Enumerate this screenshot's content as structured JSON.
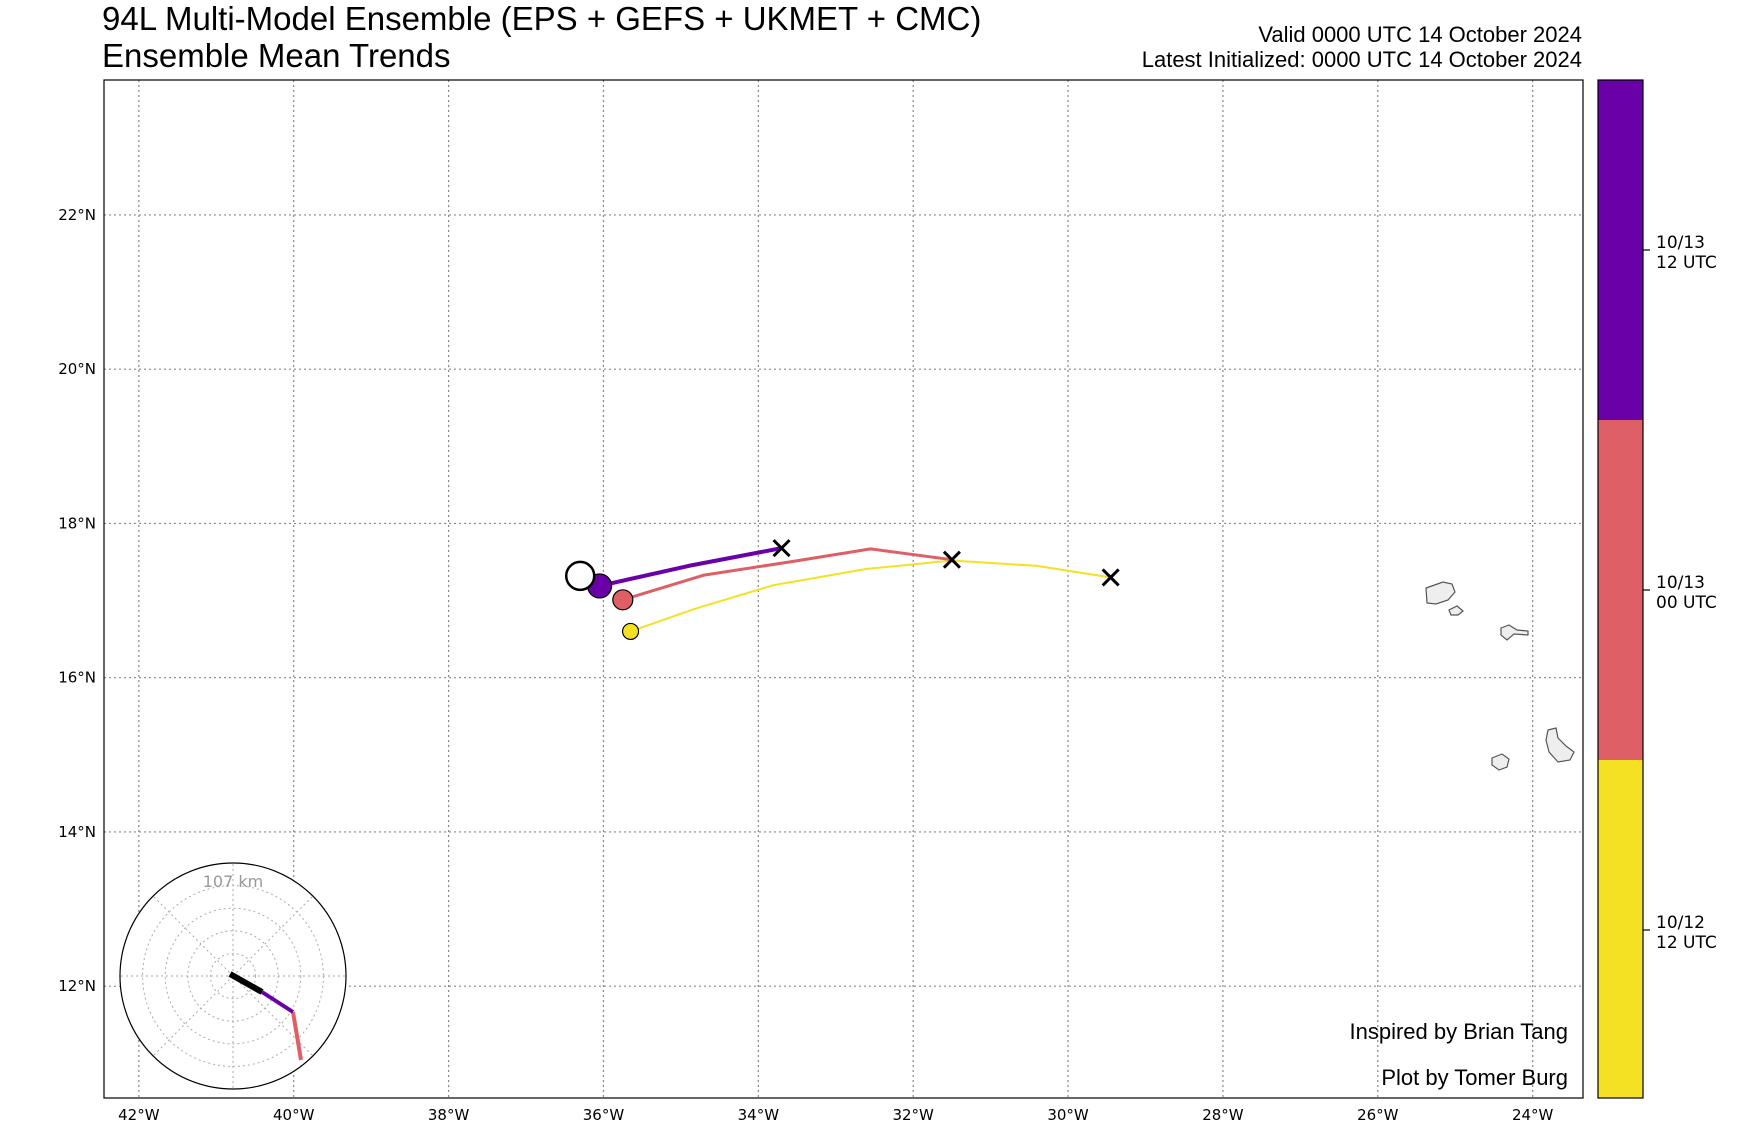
{
  "header": {
    "title": "94L Multi-Model Ensemble (EPS + GEFS + UKMET + CMC)",
    "subtitle": "Ensemble Mean Trends",
    "valid": "Valid 0000 UTC 14 October 2024",
    "initialized": "Latest Initialized: 0000 UTC 14 October 2024"
  },
  "credits": {
    "inspired": "Inspired by Brian Tang",
    "plot_by": "Plot by Tomer Burg"
  },
  "colors": {
    "trend_12z_13": "#6a00a8",
    "trend_00z_13": "#de5f65",
    "trend_12z_12": "#f5e124",
    "latest": "#ffffff",
    "land_fill": "#eeeeee",
    "grid": "#888888"
  },
  "colorbar": {
    "labels": [
      {
        "line1": "10/13",
        "line2": "12 UTC"
      },
      {
        "line1": "10/13",
        "line2": "00 UTC"
      },
      {
        "line1": "10/12",
        "line2": "12 UTC"
      }
    ]
  },
  "polar_inset": {
    "radius_label": "107 km"
  },
  "chart_data": {
    "type": "map",
    "projection": "lat-lon",
    "xlim_lon": [
      -42.45,
      -23.35
    ],
    "ylim_lat": [
      10.55,
      23.75
    ],
    "lon_ticks": [
      -42,
      -40,
      -38,
      -36,
      -34,
      -32,
      -30,
      -28,
      -26,
      -24
    ],
    "lon_tick_labels": [
      "42°W",
      "40°W",
      "38°W",
      "36°W",
      "34°W",
      "32°W",
      "30°W",
      "28°W",
      "26°W",
      "24°W"
    ],
    "lat_ticks": [
      12,
      14,
      16,
      18,
      20,
      22
    ],
    "lat_tick_labels": [
      "12°N",
      "14°N",
      "16°N",
      "18°N",
      "20°N",
      "22°N"
    ],
    "grid": true,
    "tracks": [
      {
        "name": "10/12 12 UTC",
        "color": "#f5e124",
        "width": 2,
        "points": [
          [
            -35.65,
            16.6
          ],
          [
            -34.8,
            16.9
          ],
          [
            -33.8,
            17.2
          ],
          [
            -32.6,
            17.41
          ],
          [
            -31.5,
            17.52
          ],
          [
            -30.4,
            17.45
          ],
          [
            -29.45,
            17.3
          ]
        ],
        "start_marker": [
          -35.65,
          16.6
        ],
        "end_marker": [
          -29.45,
          17.3
        ]
      },
      {
        "name": "10/13 00 UTC",
        "color": "#de5f65",
        "width": 3,
        "points": [
          [
            -35.75,
            17.01
          ],
          [
            -34.7,
            17.33
          ],
          [
            -33.6,
            17.5
          ],
          [
            -32.55,
            17.67
          ],
          [
            -31.5,
            17.53
          ]
        ],
        "start_marker": [
          -35.75,
          17.01
        ],
        "end_marker": [
          -31.5,
          17.53
        ]
      },
      {
        "name": "10/13 12 UTC",
        "color": "#6a00a8",
        "width": 4,
        "points": [
          [
            -36.05,
            17.19
          ],
          [
            -34.9,
            17.45
          ],
          [
            -33.7,
            17.68
          ]
        ],
        "start_marker": [
          -36.05,
          17.19
        ],
        "end_marker": [
          -33.7,
          17.68
        ]
      }
    ],
    "latest_position": [
      -36.3,
      17.32
    ]
  }
}
